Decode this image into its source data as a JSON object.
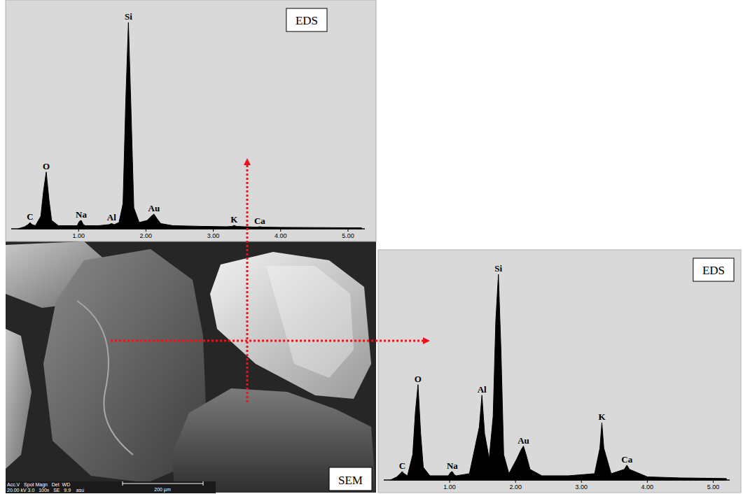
{
  "chart_data": [
    {
      "type": "area",
      "title": "EDS",
      "color": "#000000",
      "tick_labels": "x",
      "xlim": [
        0,
        5.25
      ],
      "ylim": [
        0,
        100
      ],
      "xticks": [
        {
          "value": 1,
          "label": "1.00"
        },
        {
          "value": 2,
          "label": "2.00"
        },
        {
          "value": 3,
          "label": "3.00"
        },
        {
          "value": 4,
          "label": "4.00"
        },
        {
          "value": 5,
          "label": "5.00"
        }
      ],
      "x": [
        0.1,
        0.2,
        0.25,
        0.28,
        0.31,
        0.36,
        0.44,
        0.48,
        0.52,
        0.56,
        0.6,
        0.7,
        0.85,
        0.98,
        1.01,
        1.04,
        1.07,
        1.1,
        1.3,
        1.45,
        1.49,
        1.53,
        1.6,
        1.66,
        1.7,
        1.74,
        1.78,
        1.82,
        1.9,
        2.02,
        2.08,
        2.12,
        2.16,
        2.22,
        2.4,
        2.8,
        3.2,
        3.28,
        3.31,
        3.34,
        3.45,
        3.65,
        3.69,
        3.73,
        4.0,
        4.5,
        5.0,
        5.2
      ],
      "values": [
        0,
        1,
        2,
        3,
        2,
        1.5,
        6,
        18,
        27,
        14,
        4,
        1.5,
        1.5,
        1.5,
        3.5,
        4,
        2,
        1.5,
        1.5,
        2,
        2.5,
        2,
        3,
        12,
        60,
        98,
        55,
        10,
        3,
        4,
        6,
        7,
        5,
        2.5,
        1.5,
        1.2,
        1,
        1.2,
        1.6,
        1.2,
        1,
        0.8,
        1,
        0.8,
        0.7,
        0.6,
        0.5,
        0.5
      ],
      "annotations": [
        {
          "text": "C",
          "x": 0.28
        },
        {
          "text": "O",
          "x": 0.52
        },
        {
          "text": "Na",
          "x": 1.04
        },
        {
          "text": "Al",
          "x": 1.49
        },
        {
          "text": "Si",
          "x": 1.74
        },
        {
          "text": "Au",
          "x": 2.12
        },
        {
          "text": "K",
          "x": 3.31
        },
        {
          "text": "Ca",
          "x": 3.69
        }
      ]
    },
    {
      "type": "area",
      "title": "EDS",
      "color": "#000000",
      "tick_labels": "x",
      "xlim": [
        0,
        5.25
      ],
      "ylim": [
        0,
        100
      ],
      "xticks": [
        {
          "value": 1,
          "label": "1.00"
        },
        {
          "value": 2,
          "label": "2.00"
        },
        {
          "value": 3,
          "label": "3.00"
        },
        {
          "value": 4,
          "label": "4.00"
        },
        {
          "value": 5,
          "label": "5.00"
        }
      ],
      "x": [
        0.1,
        0.2,
        0.25,
        0.28,
        0.31,
        0.36,
        0.44,
        0.48,
        0.52,
        0.56,
        0.6,
        0.7,
        0.85,
        0.98,
        1.01,
        1.04,
        1.07,
        1.1,
        1.3,
        1.45,
        1.49,
        1.53,
        1.6,
        1.66,
        1.7,
        1.74,
        1.78,
        1.82,
        1.9,
        2.02,
        2.08,
        2.12,
        2.16,
        2.22,
        2.4,
        2.8,
        3.2,
        3.28,
        3.31,
        3.34,
        3.45,
        3.65,
        3.69,
        3.73,
        4.0,
        4.5,
        5.0,
        5.2
      ],
      "values": [
        0,
        1.5,
        3,
        4,
        3,
        2,
        12,
        32,
        45,
        22,
        6,
        2,
        2,
        2,
        3.5,
        4,
        2.5,
        2,
        3,
        25,
        40,
        22,
        10,
        30,
        75,
        97,
        60,
        12,
        3,
        10,
        14,
        16,
        12,
        5,
        2,
        2,
        3,
        15,
        27,
        15,
        3,
        5,
        7,
        5,
        1.5,
        1,
        0.8,
        0.7
      ],
      "annotations": [
        {
          "text": "C",
          "x": 0.28
        },
        {
          "text": "O",
          "x": 0.52
        },
        {
          "text": "Na",
          "x": 1.04
        },
        {
          "text": "Al",
          "x": 1.49
        },
        {
          "text": "Si",
          "x": 1.74
        },
        {
          "text": "Au",
          "x": 2.12
        },
        {
          "text": "K",
          "x": 3.31
        },
        {
          "text": "Ca",
          "x": 3.69
        }
      ]
    }
  ],
  "sem_panel": {
    "label": "SEM",
    "info_header": "Acc.V   Spot Magn   Det  WD",
    "info_values": "20.00 kV 3.0   100x   SE   9.9    asu",
    "scale_bar": "200 µm"
  }
}
